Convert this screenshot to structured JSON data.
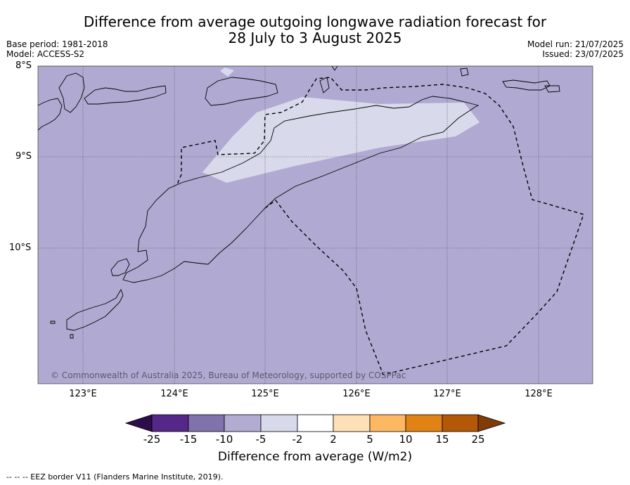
{
  "title_line1": "Difference from average outgoing longwave radiation forecast for",
  "title_line2": "28 July to 3 August 2025",
  "meta_left": {
    "base_period": "Base period: 1981-2018",
    "model": "Model: ACCESS-S2"
  },
  "meta_right": {
    "model_run": "Model run: 21/07/2025",
    "issued": "Issued: 23/07/2025"
  },
  "lat_labels": [
    "8°S",
    "9°S",
    "10°S"
  ],
  "lon_labels": [
    "123°E",
    "124°E",
    "125°E",
    "126°E",
    "127°E",
    "128°E"
  ],
  "copyright": "© Commonwealth of Australia 2025, Bureau of Meteorology, supported by COSPPac",
  "colorbar": {
    "ticks": [
      "-25",
      "-15",
      "-10",
      "-5",
      "-2",
      "2",
      "5",
      "10",
      "15",
      "25"
    ],
    "colors": [
      "#2d0c4b",
      "#542788",
      "#8073ac",
      "#b2abd2",
      "#d8daeb",
      "#ffffff",
      "#fee0b6",
      "#fdb863",
      "#e08214",
      "#b35806",
      "#7f3b08"
    ],
    "label": "Difference from average (W/m2)"
  },
  "footer": "--  --  -- EEZ border V11 (Flanders Marine Institute, 2019)."
}
